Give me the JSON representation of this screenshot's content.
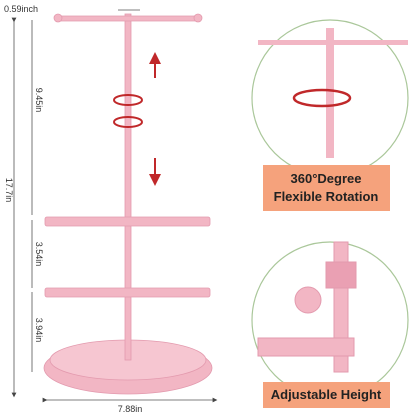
{
  "dimensions": {
    "top_width": "0.59inch",
    "upper_height": "9.45in",
    "total_height": "17.7in",
    "middle_gap": "3.54in",
    "lower_gap": "3.94in",
    "base_width": "7.88in"
  },
  "callouts": {
    "rotation": {
      "line1": "360°Degree",
      "line2": "Flexible Rotation"
    },
    "height": {
      "label": "Adjustable Height"
    }
  }
}
